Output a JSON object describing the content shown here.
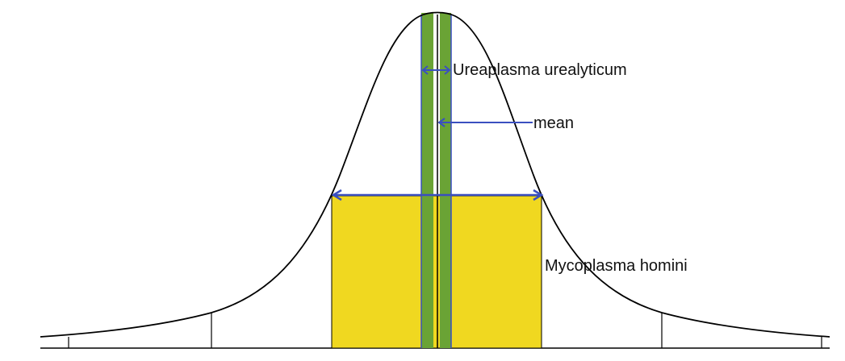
{
  "labels": {
    "ureaplasma": "Ureaplasma urealyticum",
    "mean": "mean",
    "mycoplasma": "Mycoplasma homini"
  },
  "colors": {
    "curve": "#000000",
    "green_band": "#6aa335",
    "yellow_region": "#f0d820",
    "arrow": "#3a4fc0"
  }
}
